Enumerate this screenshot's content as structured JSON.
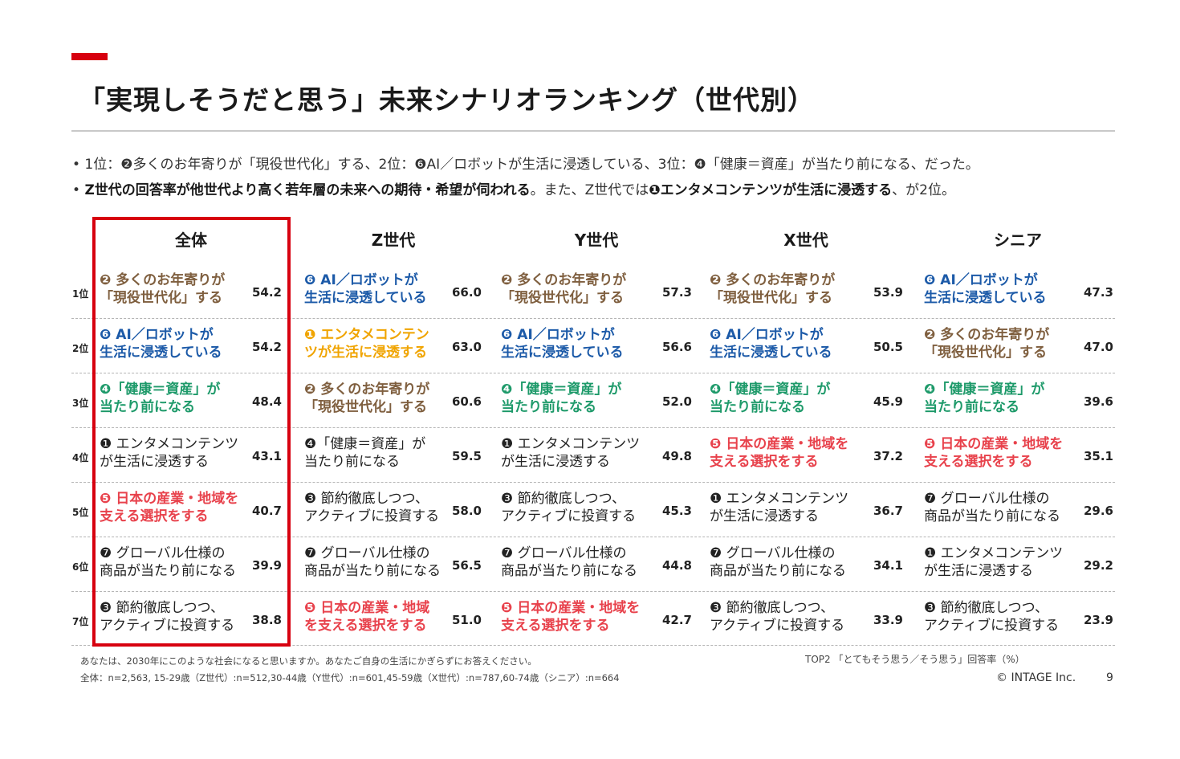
{
  "title": "「実現しそうだと思う」未来シナリオランキング（世代別）",
  "bullets": {
    "b1": "• 1位：❷多くのお年寄りが「現役世代化」する、2位：❻AI／ロボットが生活に浸透している、3位：❹「健康＝資産」が当たり前になる、だった。",
    "b2_prefix": "• ",
    "b2_bold1": "Z世代の回答率が他世代より高く若年層の未来への期待・希望が伺われる",
    "b2_mid": "。また、Z世代では",
    "b2_bold2": "❶エンタメコンテンツが生活に浸透する",
    "b2_suffix": "、が2位。"
  },
  "columns": [
    "全体",
    "Z世代",
    "Y世代",
    "X世代",
    "シニア"
  ],
  "ranks": [
    "1位",
    "2位",
    "3位",
    "4位",
    "5位",
    "6位",
    "7位"
  ],
  "cells": [
    [
      {
        "l1": "❷ 多くのお年寄りが",
        "l2": "「現役世代化」する",
        "v": "54.2"
      },
      {
        "l1": "❻ AI／ロボットが",
        "l2": "生活に浸透している",
        "v": "66.0"
      },
      {
        "l1": "❷ 多くのお年寄りが",
        "l2": "「現役世代化」する",
        "v": "57.3"
      },
      {
        "l1": "❷ 多くのお年寄りが",
        "l2": "「現役世代化」する",
        "v": "53.9"
      },
      {
        "l1": "❻ AI／ロボットが",
        "l2": "生活に浸透している",
        "v": "47.3"
      }
    ],
    [
      {
        "l1": "❻ AI／ロボットが",
        "l2": "生活に浸透している",
        "v": "54.2"
      },
      {
        "l1": "❶ エンタメコンテン",
        "l2": "ツが生活に浸透する",
        "v": "63.0"
      },
      {
        "l1": "❻ AI／ロボットが",
        "l2": "生活に浸透している",
        "v": "56.6"
      },
      {
        "l1": "❻ AI／ロボットが",
        "l2": "生活に浸透している",
        "v": "50.5"
      },
      {
        "l1": "❷ 多くのお年寄りが",
        "l2": "「現役世代化」する",
        "v": "47.0"
      }
    ],
    [
      {
        "l1": "❹「健康＝資産」が",
        "l2": "当たり前になる",
        "v": "48.4"
      },
      {
        "l1": "❷ 多くのお年寄りが",
        "l2": "「現役世代化」する",
        "v": "60.6"
      },
      {
        "l1": "❹「健康＝資産」が",
        "l2": "当たり前になる",
        "v": "52.0"
      },
      {
        "l1": "❹「健康＝資産」が",
        "l2": "当たり前になる",
        "v": "45.9"
      },
      {
        "l1": "❹「健康＝資産」が",
        "l2": "当たり前になる",
        "v": "39.6"
      }
    ],
    [
      {
        "l1": "❶ エンタメコンテンツ",
        "l2": "が生活に浸透する",
        "v": "43.1"
      },
      {
        "l1": "❹「健康＝資産」が",
        "l2": "当たり前になる",
        "v": "59.5"
      },
      {
        "l1": "❶ エンタメコンテンツ",
        "l2": "が生活に浸透する",
        "v": "49.8"
      },
      {
        "l1": "❺ 日本の産業・地域を",
        "l2": "支える選択をする",
        "v": "37.2"
      },
      {
        "l1": "❺ 日本の産業・地域を",
        "l2": "支える選択をする",
        "v": "35.1"
      }
    ],
    [
      {
        "l1": "❺ 日本の産業・地域を",
        "l2": "支える選択をする",
        "v": "40.7"
      },
      {
        "l1": "❸ 節約徹底しつつ、",
        "l2": "アクティブに投資する",
        "v": "58.0"
      },
      {
        "l1": "❸ 節約徹底しつつ、",
        "l2": "アクティブに投資する",
        "v": "45.3"
      },
      {
        "l1": "❶ エンタメコンテンツ",
        "l2": "が生活に浸透する",
        "v": "36.7"
      },
      {
        "l1": "❼ グローバル仕様の",
        "l2": "商品が当たり前になる",
        "v": "29.6"
      }
    ],
    [
      {
        "l1": "❼ グローバル仕様の",
        "l2": "商品が当たり前になる",
        "v": "39.9"
      },
      {
        "l1": "❼ グローバル仕様の",
        "l2": "商品が当たり前になる",
        "v": "56.5"
      },
      {
        "l1": "❼ グローバル仕様の",
        "l2": "商品が当たり前になる",
        "v": "44.8"
      },
      {
        "l1": "❼ グローバル仕様の",
        "l2": "商品が当たり前になる",
        "v": "34.1"
      },
      {
        "l1": "❶ エンタメコンテンツ",
        "l2": "が生活に浸透する",
        "v": "29.2"
      }
    ],
    [
      {
        "l1": "❸ 節約徹底しつつ、",
        "l2": "アクティブに投資する",
        "v": "38.8"
      },
      {
        "l1": "❺ 日本の産業・地域",
        "l2": "を支える選択をする",
        "v": "51.0"
      },
      {
        "l1": "❺ 日本の産業・地域を",
        "l2": "支える選択をする",
        "v": "42.7"
      },
      {
        "l1": "❸ 節約徹底しつつ、",
        "l2": "アクティブに投資する",
        "v": "33.9"
      },
      {
        "l1": "❸ 節約徹底しつつ、",
        "l2": "アクティブに投資する",
        "v": "23.9"
      }
    ]
  ],
  "colors": {
    "accent_red": "#d7000f",
    "scenario_2_brown": "#7f5f3f",
    "scenario_6_blue": "#1c5aa8",
    "scenario_4_green": "#1e9a6a",
    "scenario_1_orange": "#f0a400",
    "scenario_5_red": "#e8424c"
  },
  "footer": {
    "question": "あなたは、2030年にこのような社会になると思いますか。あなたご自身の生活にかぎらずにお答えください。",
    "sample": "全体：n=2,563, 15-29歳（Z世代）:n=512,30-44歳（Y世代）:n=601,45-59歳（X世代）:n=787,60-74歳（シニア）:n=664",
    "metric": "TOP2 「とてもそう思う／そう思う」回答率（%）",
    "copyright": "© INTAGE Inc.",
    "page": "9"
  }
}
